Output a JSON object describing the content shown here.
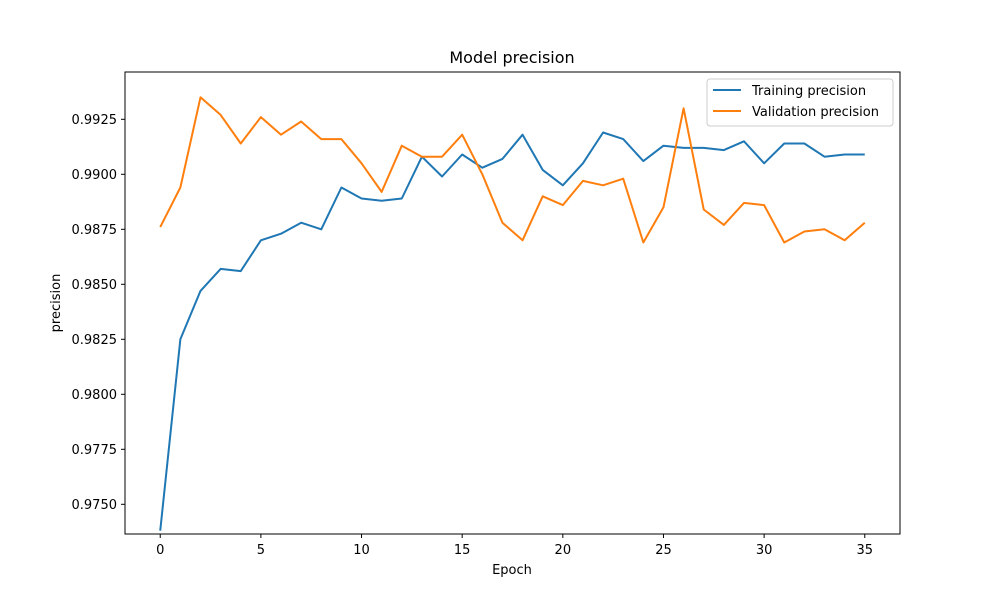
{
  "chart_data": {
    "type": "line",
    "title": "Model precision",
    "xlabel": "Epoch",
    "ylabel": "precision",
    "xlim": [
      -1.75,
      36.75
    ],
    "ylim": [
      0.97365,
      0.99465
    ],
    "xticks": [
      0,
      5,
      10,
      15,
      20,
      25,
      30,
      35
    ],
    "yticks": [
      0.975,
      0.9775,
      0.98,
      0.9825,
      0.985,
      0.9875,
      0.99,
      0.9925
    ],
    "ytick_labels": [
      "0.9750",
      "0.9775",
      "0.9800",
      "0.9825",
      "0.9850",
      "0.9875",
      "0.9900",
      "0.9925"
    ],
    "grid": false,
    "legend_position": "top-right",
    "x": [
      0,
      1,
      2,
      3,
      4,
      5,
      6,
      7,
      8,
      9,
      10,
      11,
      12,
      13,
      14,
      15,
      16,
      17,
      18,
      19,
      20,
      21,
      22,
      23,
      24,
      25,
      26,
      27,
      28,
      29,
      30,
      31,
      32,
      33,
      34,
      35
    ],
    "series": [
      {
        "name": "Training precision",
        "color": "#1f77b4",
        "values": [
          0.9738,
          0.9825,
          0.9847,
          0.9857,
          0.9856,
          0.987,
          0.9873,
          0.9878,
          0.9875,
          0.9894,
          0.9889,
          0.9888,
          0.9889,
          0.9908,
          0.9899,
          0.9909,
          0.9903,
          0.9907,
          0.9918,
          0.9902,
          0.9895,
          0.9905,
          0.9919,
          0.9916,
          0.9906,
          0.9913,
          0.9912,
          0.9912,
          0.9911,
          0.9915,
          0.9905,
          0.9914,
          0.9914,
          0.9908,
          0.9909,
          0.9909
        ]
      },
      {
        "name": "Validation precision",
        "color": "#ff7f0e",
        "values": [
          0.9876,
          0.9894,
          0.9935,
          0.9927,
          0.9914,
          0.9926,
          0.9918,
          0.9924,
          0.9916,
          0.9916,
          0.9905,
          0.9892,
          0.9913,
          0.9908,
          0.9908,
          0.9918,
          0.99,
          0.9878,
          0.987,
          0.989,
          0.9886,
          0.9897,
          0.9895,
          0.9898,
          0.9869,
          0.9885,
          0.993,
          0.9884,
          0.9877,
          0.9887,
          0.9886,
          0.9869,
          0.9874,
          0.9875,
          0.987,
          0.9878
        ]
      }
    ]
  }
}
